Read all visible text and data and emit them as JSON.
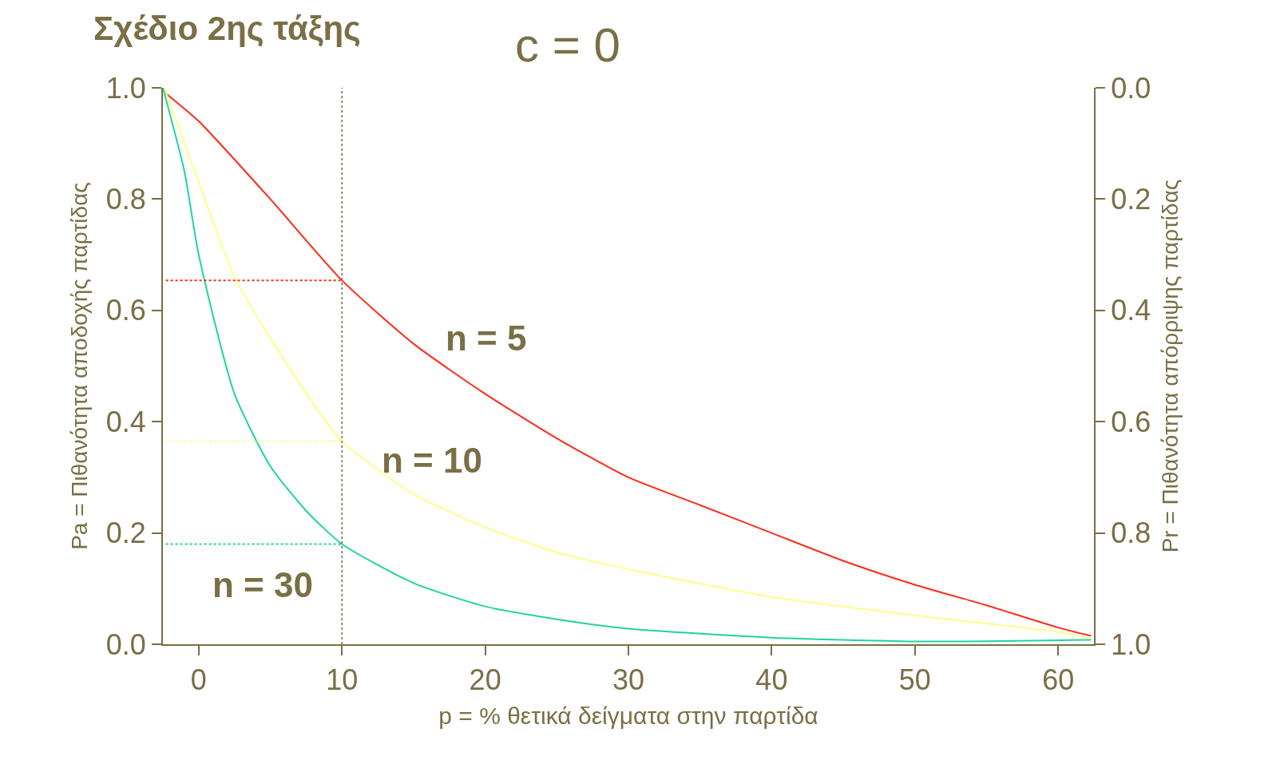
{
  "chart_data": {
    "type": "line",
    "title": "Σχέδιο 2ης τάξης",
    "subtitle": "c = 0",
    "xlabel": "p = % θετικά δείγματα στην παρτίδα",
    "ylabel": "Pa = Πιθανότητα αποδοχής παρτίδας",
    "y2label": "Pr = Πιθανότητα απόρριψης παρτίδας",
    "series": [
      {
        "name": "n = 5",
        "color": "#ff2a1a",
        "x": [
          -2.3,
          0,
          5,
          10,
          15,
          20,
          25,
          30,
          35,
          40,
          45,
          50,
          55,
          60,
          62.3
        ],
        "values": [
          0.99,
          0.94,
          0.8,
          0.654,
          0.54,
          0.45,
          0.37,
          0.3,
          0.25,
          0.2,
          0.15,
          0.107,
          0.07,
          0.03,
          0.015
        ]
      },
      {
        "name": "n = 10",
        "color": "#ffff88",
        "x": [
          -2.4,
          0,
          2.5,
          5,
          10,
          15,
          20,
          25,
          30,
          40,
          50,
          60,
          62.3
        ],
        "values": [
          1.0,
          0.83,
          0.66,
          0.55,
          0.365,
          0.27,
          0.21,
          0.165,
          0.135,
          0.085,
          0.052,
          0.022,
          0.01
        ]
      },
      {
        "name": "n = 30",
        "color": "#1ed4a0",
        "x": [
          -2.5,
          -1,
          0,
          2.5,
          5,
          7.5,
          10,
          15,
          20,
          25,
          30,
          40,
          50,
          62.3
        ],
        "values": [
          1.0,
          0.85,
          0.7,
          0.45,
          0.32,
          0.24,
          0.18,
          0.11,
          0.068,
          0.045,
          0.028,
          0.012,
          0.005,
          0.008
        ]
      },
      {
        "color": "#ff2a1a",
        "line_style": "dotted",
        "x": [
          -2.3,
          10
        ],
        "values": [
          0.654,
          0.654
        ]
      },
      {
        "color": "#ffff88",
        "line_style": "dotted",
        "x": [
          -2.3,
          10
        ],
        "values": [
          0.365,
          0.365
        ]
      },
      {
        "color": "#1ed4a0",
        "line_style": "dotted",
        "x": [
          -2.3,
          10
        ],
        "values": [
          0.18,
          0.18
        ]
      }
    ],
    "ref_lines": [
      {
        "axis": "x",
        "value": 10,
        "color": "#7a6f45",
        "line_style": "dotted"
      }
    ],
    "xlim": [
      -2.5,
      62.5
    ],
    "xticks": [
      0,
      10,
      20,
      30,
      40,
      50,
      60
    ],
    "ylim": [
      0,
      1
    ],
    "yticks": [
      {
        "value": 0,
        "label": "0.0"
      },
      0.2,
      0.4,
      0.6,
      0.8,
      {
        "value": 1,
        "label": "1.0"
      }
    ],
    "y2lim": [
      1,
      0
    ],
    "y2ticks": [
      {
        "value": 0,
        "label": "0.0"
      },
      0.2,
      0.4,
      0.6,
      0.8,
      {
        "value": 1,
        "label": "1.0"
      }
    ],
    "legend": false
  }
}
